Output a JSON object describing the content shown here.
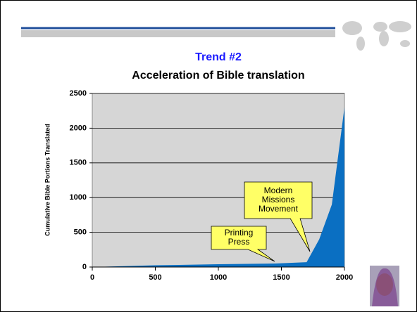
{
  "chart_data": {
    "type": "area",
    "title": "Trend #2",
    "subtitle": "Acceleration of Bible translation",
    "ylabel": "Cumulative Bible Portions Translated",
    "x": [
      0,
      500,
      1000,
      1450,
      1700,
      1800,
      1900,
      2000
    ],
    "y": [
      0,
      25,
      40,
      50,
      70,
      400,
      900,
      2300
    ],
    "color": "#0a6fc2",
    "xlim": [
      0,
      2000
    ],
    "xticks": [
      0,
      500,
      1000,
      1500,
      2000
    ],
    "ylim": [
      0,
      2500
    ],
    "yticks": [
      0,
      500,
      1000,
      1500,
      2000,
      2500
    ],
    "annotations": [
      [
        "Printing",
        "Press"
      ],
      [
        "Modern",
        "Missions",
        "Movement"
      ]
    ]
  }
}
